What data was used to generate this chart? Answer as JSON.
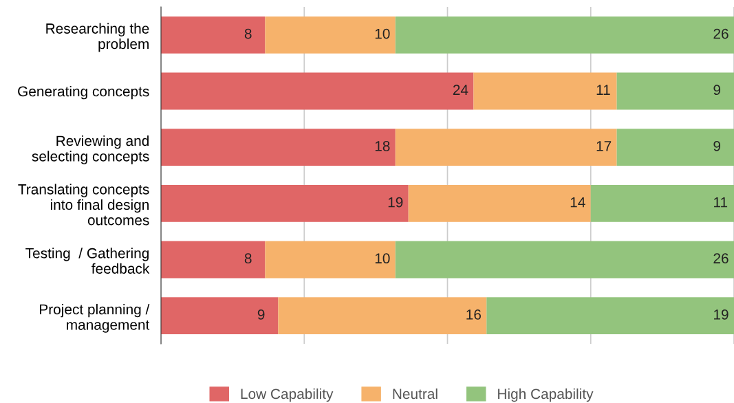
{
  "chart_data": {
    "type": "bar",
    "orientation": "horizontal",
    "stacked": true,
    "data_labels": true,
    "categories": [
      "Researching the\nproblem",
      "Generating concepts",
      "Reviewing and\nselecting concepts",
      "Translating concepts\ninto final design\noutcomes",
      "Testing  / Gathering\nfeedback",
      "Project planning /\nmanagement"
    ],
    "series": [
      {
        "name": "Low Capability",
        "color": "#e06666",
        "values": [
          8,
          24,
          18,
          19,
          8,
          9
        ]
      },
      {
        "name": "Neutral",
        "color": "#f6b26b",
        "values": [
          10,
          11,
          17,
          14,
          10,
          16
        ]
      },
      {
        "name": "High Capability",
        "color": "#93c47d",
        "values": [
          26,
          9,
          9,
          11,
          26,
          19
        ]
      }
    ],
    "xlim": [
      0,
      44
    ],
    "xticks": [
      {
        "value": 0,
        "label": null
      },
      {
        "value": 11,
        "label": null
      },
      {
        "value": 22,
        "label": null
      },
      {
        "value": 33,
        "label": null
      },
      {
        "value": 44,
        "label": null
      }
    ],
    "grid": "x",
    "legend": "bottom",
    "tick_labels": "y"
  }
}
